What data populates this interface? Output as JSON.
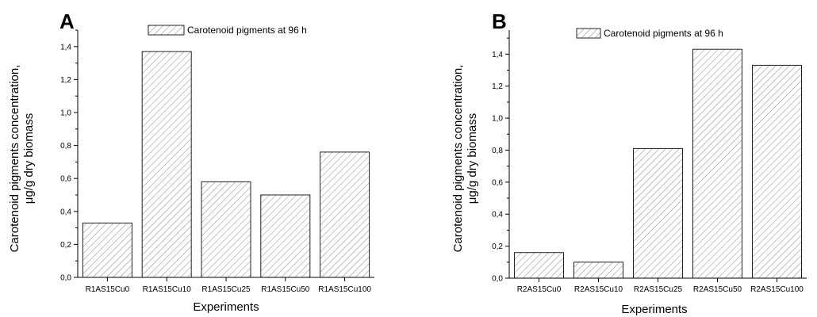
{
  "chart_data": [
    {
      "type": "bar",
      "panel_label": "A",
      "categories": [
        "R1AS15Cu0",
        "R1AS15Cu10",
        "R1AS15Cu25",
        "R1AS15Cu50",
        "R1AS15Cu100"
      ],
      "series": [
        {
          "name": "Carotenoid pigments at 96 h",
          "values": [
            0.33,
            1.37,
            0.58,
            0.5,
            0.76
          ]
        }
      ],
      "xlabel": "Experiments",
      "ylabel_lines": [
        "Carotenoid pigments concentration,",
        "μg/g dry biomass"
      ],
      "ylim": [
        0,
        1.5
      ],
      "yticks": [
        "0,0",
        "0,2",
        "0,4",
        "0,6",
        "0,8",
        "1,0",
        "1,2",
        "1,4"
      ],
      "grid": false,
      "legend_position": "top-center",
      "bar_fill": "hatched",
      "colors": {
        "bar_stroke": "#222222",
        "hatch": "#8a8a8a"
      }
    },
    {
      "type": "bar",
      "panel_label": "B",
      "categories": [
        "R2AS15Cu0",
        "R2AS15Cu10",
        "R2AS15Cu25",
        "R2AS15Cu50",
        "R2AS15Cu100"
      ],
      "series": [
        {
          "name": "Carotenoid pigments at 96 h",
          "values": [
            0.16,
            0.1,
            0.81,
            1.43,
            1.33
          ]
        }
      ],
      "xlabel": "Experiments",
      "ylabel_lines": [
        "Carotenoid pigments concentration,",
        "μg/g dry biomass"
      ],
      "ylim": [
        0,
        1.55
      ],
      "yticks": [
        "0,0",
        "0,2",
        "0,4",
        "0,6",
        "0,8",
        "1,0",
        "1,2",
        "1,4"
      ],
      "grid": false,
      "legend_position": "top-center",
      "bar_fill": "hatched",
      "colors": {
        "bar_stroke": "#222222",
        "hatch": "#8a8a8a"
      }
    }
  ]
}
